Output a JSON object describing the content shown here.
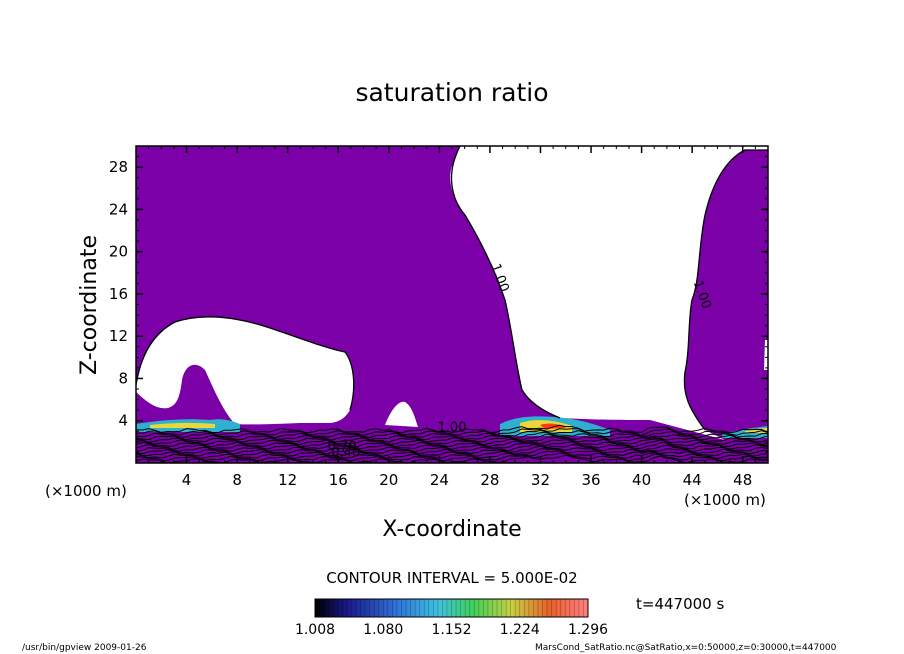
{
  "chart_data": {
    "type": "heatmap",
    "title": "saturation ratio",
    "xlabel": "X-coordinate",
    "ylabel": "Z-coordinate",
    "x_unit": "(×1000 m)",
    "y_unit": "(×1000 m)",
    "xlim": [
      0,
      50
    ],
    "ylim": [
      0,
      30
    ],
    "x_ticks": [
      4,
      8,
      12,
      16,
      20,
      24,
      28,
      32,
      36,
      40,
      44,
      48
    ],
    "y_ticks": [
      4,
      8,
      12,
      16,
      20,
      24,
      28
    ],
    "contour_interval": "CONTOUR INTERVAL = 5.000E-02",
    "time_label": "t=447000 s",
    "colorbar": {
      "ticks": [
        "1.008",
        "1.080",
        "1.152",
        "1.224",
        "1.296"
      ],
      "range": [
        1.008,
        1.296
      ]
    },
    "contour_labels": [
      {
        "text": "1.00",
        "x": 28.5,
        "z": 17.4
      },
      {
        "text": "1.00",
        "x": 44.5,
        "z": 15.8
      },
      {
        "text": "1.00",
        "x": 25.0,
        "z": 3.0
      },
      {
        "text": "0.70",
        "x": 16.3,
        "z": 1.2
      },
      {
        "text": "0.40",
        "x": 16.6,
        "z": 0.6
      }
    ],
    "colors": {
      "subsaturated_fill": "#7b00a8",
      "supersaturated_low": "#2b9bd6",
      "supersaturated_high": "#ff2a1a"
    }
  },
  "footer": {
    "left": "/usr/bin/gpview   2009-01-26",
    "right": "MarsCond_SatRatio.nc@SatRatio,x=0:50000,z=0:30000,t=447000"
  }
}
